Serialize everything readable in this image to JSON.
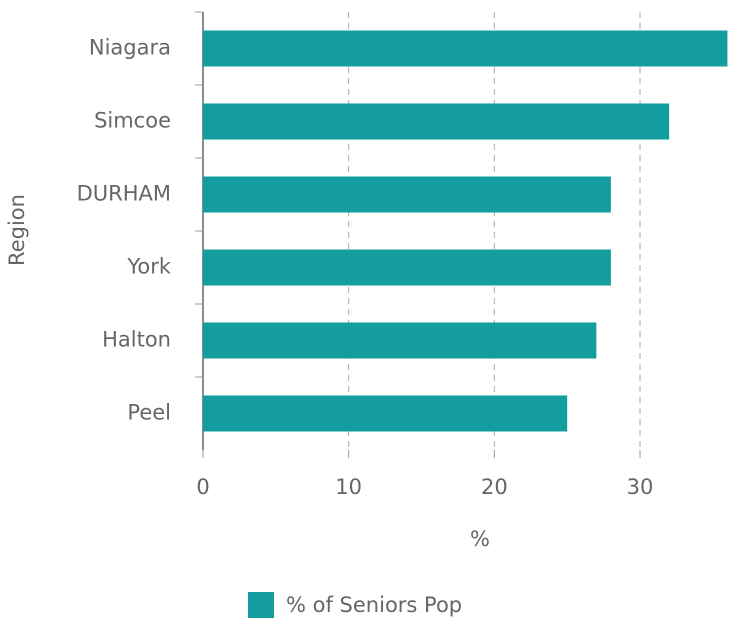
{
  "chart_data": {
    "type": "bar",
    "orientation": "horizontal",
    "categories": [
      "Niagara",
      "Simcoe",
      "DURHAM",
      "York",
      "Halton",
      "Peel"
    ],
    "series": [
      {
        "name": "% of Seniors Pop",
        "color": "#139d9e",
        "values": [
          36,
          32,
          28,
          28,
          27,
          25
        ]
      }
    ],
    "xlabel": "%",
    "ylabel": "Region",
    "xlim": [
      0,
      37
    ],
    "xticks": [
      0,
      10,
      20,
      30
    ],
    "grid": true,
    "legend": "bottom"
  }
}
